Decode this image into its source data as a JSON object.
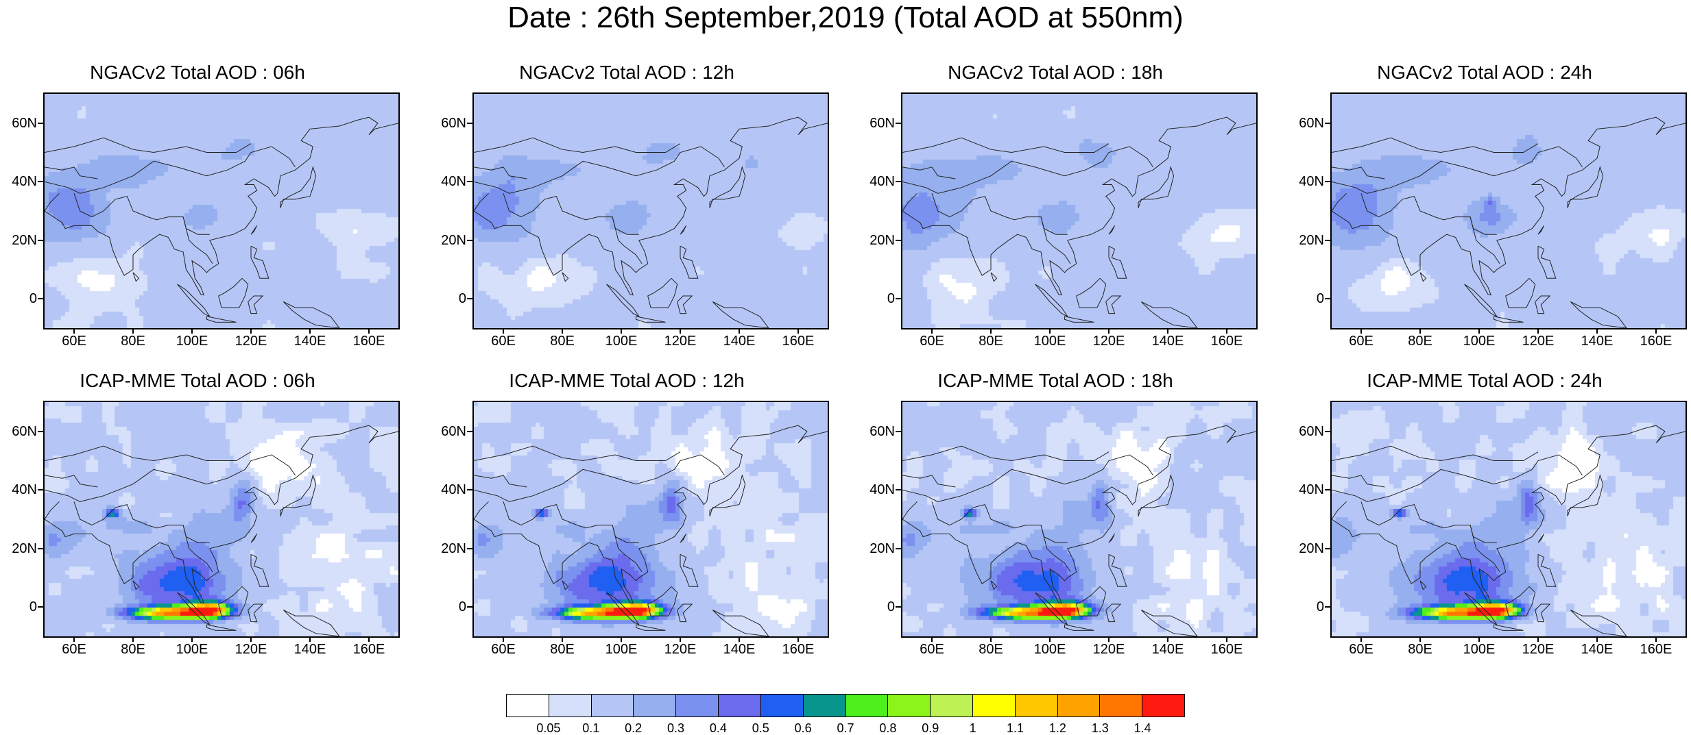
{
  "title": "Date : 26th September,2019 (Total AOD at 550nm)",
  "panels": [
    {
      "title": "NGACv2 Total AOD : 06h",
      "model": "ngac",
      "step": 0
    },
    {
      "title": "NGACv2 Total AOD : 12h",
      "model": "ngac",
      "step": 1
    },
    {
      "title": "NGACv2 Total AOD : 18h",
      "model": "ngac",
      "step": 2
    },
    {
      "title": "NGACv2 Total AOD : 24h",
      "model": "ngac",
      "step": 3
    },
    {
      "title": "ICAP-MME Total AOD : 06h",
      "model": "icap",
      "step": 0
    },
    {
      "title": "ICAP-MME Total AOD : 12h",
      "model": "icap",
      "step": 1
    },
    {
      "title": "ICAP-MME Total AOD : 18h",
      "model": "icap",
      "step": 2
    },
    {
      "title": "ICAP-MME Total AOD : 24h",
      "model": "icap",
      "step": 3
    }
  ],
  "axes": {
    "lat_range": [
      -10,
      70
    ],
    "lon_range": [
      50,
      170
    ],
    "lat_ticks": [
      {
        "value": 60,
        "label": "60N"
      },
      {
        "value": 40,
        "label": "40N"
      },
      {
        "value": 20,
        "label": "20N"
      },
      {
        "value": 0,
        "label": "0"
      }
    ],
    "lon_ticks": [
      {
        "value": 60,
        "label": "60E"
      },
      {
        "value": 80,
        "label": "80E"
      },
      {
        "value": 100,
        "label": "100E"
      },
      {
        "value": 120,
        "label": "120E"
      },
      {
        "value": 140,
        "label": "140E"
      },
      {
        "value": 160,
        "label": "160E"
      }
    ]
  },
  "colorbar": {
    "levels": [
      "0.05",
      "0.1",
      "0.2",
      "0.3",
      "0.4",
      "0.5",
      "0.6",
      "0.7",
      "0.8",
      "0.9",
      "1",
      "1.1",
      "1.2",
      "1.3",
      "1.4"
    ],
    "colors": [
      "#ffffff",
      "#d6e0fb",
      "#b5c6f6",
      "#95afef",
      "#7b91f0",
      "#6a6ced",
      "#1f5ff2",
      "#07958e",
      "#4fef1d",
      "#8bf51a",
      "#bef254",
      "#ffff00",
      "#ffc700",
      "#ffa200",
      "#ff7700",
      "#ff1a10"
    ]
  }
}
